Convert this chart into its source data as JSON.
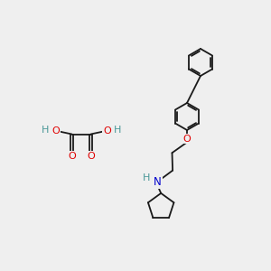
{
  "bg_color": "#efefef",
  "atom_colors": {
    "O": "#e00000",
    "N": "#0000cc",
    "H": "#4a9898",
    "C": "#1a1a1a"
  },
  "bond_color": "#1a1a1a",
  "bond_width": 1.3
}
